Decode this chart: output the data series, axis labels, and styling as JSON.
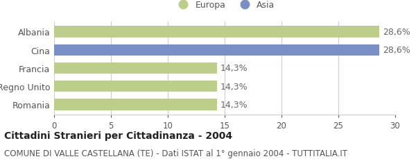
{
  "categories": [
    "Albania",
    "Cina",
    "Francia",
    "Regno Unito",
    "Romania"
  ],
  "values": [
    28.6,
    28.6,
    14.3,
    14.3,
    14.3
  ],
  "bar_colors": [
    "#bccf8a",
    "#7b8fc7",
    "#bccf8a",
    "#bccf8a",
    "#bccf8a"
  ],
  "value_labels": [
    "28,6%",
    "28,6%",
    "14,3%",
    "14,3%",
    "14,3%"
  ],
  "legend_labels": [
    "Europa",
    "Asia"
  ],
  "legend_colors": [
    "#bccf8a",
    "#7b8fc7"
  ],
  "xlim": [
    0,
    30
  ],
  "xticks": [
    0,
    5,
    10,
    15,
    20,
    25,
    30
  ],
  "title": "Cittadini Stranieri per Cittadinanza - 2004",
  "subtitle": "COMUNE DI VALLE CASTELLANA (TE) - Dati ISTAT al 1° gennaio 2004 - TUTTITALIA.IT",
  "background_color": "#ffffff",
  "grid_color": "#cccccc",
  "label_fontsize": 9,
  "tick_fontsize": 8.5,
  "title_fontsize": 10,
  "subtitle_fontsize": 8.5
}
